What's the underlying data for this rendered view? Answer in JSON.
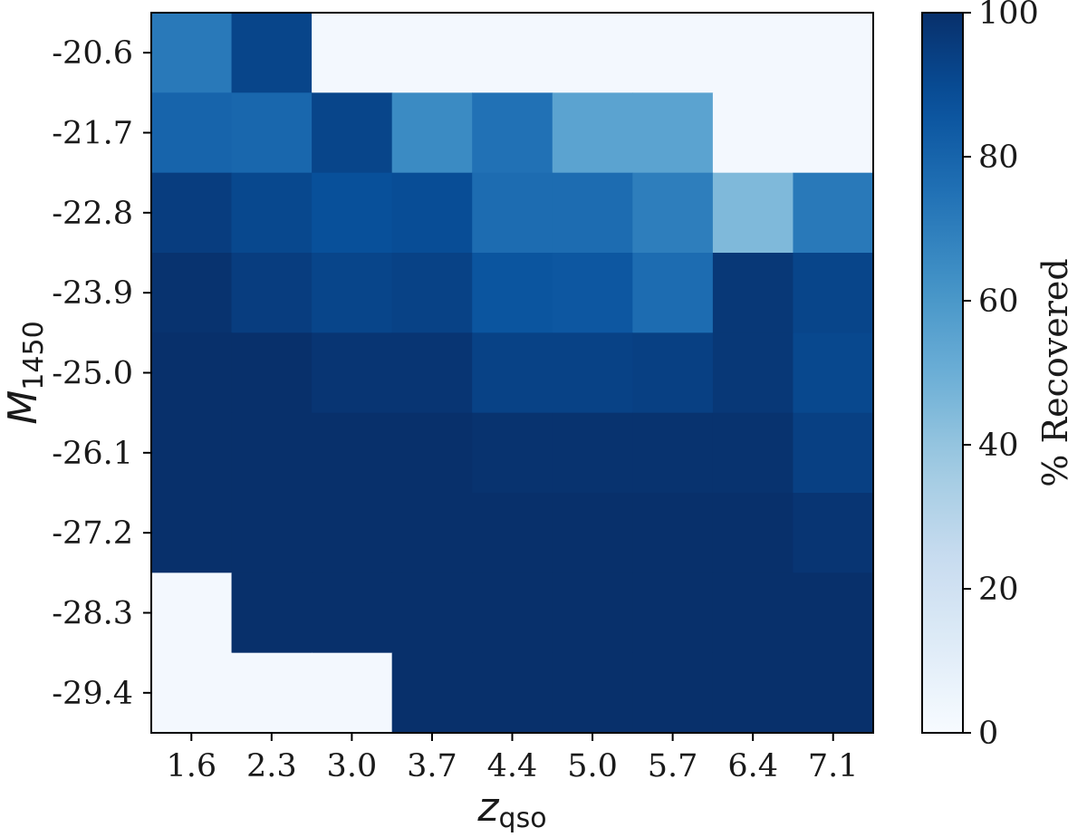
{
  "chart_data": {
    "type": "heatmap",
    "x": {
      "label_main": "z",
      "label_sub": "qso",
      "ticks": [
        "1.6",
        "2.3",
        "3.0",
        "3.7",
        "4.4",
        "5.0",
        "5.7",
        "6.4",
        "7.1"
      ]
    },
    "y": {
      "label_main": "M",
      "label_sub": "1450",
      "ticks": [
        "-20.6",
        "-21.7",
        "-22.8",
        "-23.9",
        "-25.0",
        "-26.1",
        "-27.2",
        "-28.3",
        "-29.4"
      ]
    },
    "values": [
      [
        72,
        92,
        2,
        2,
        2,
        2,
        2,
        2,
        2
      ],
      [
        80,
        79,
        92,
        65,
        75,
        55,
        55,
        2,
        2
      ],
      [
        95,
        91,
        88,
        89,
        77,
        77,
        70,
        45,
        72
      ],
      [
        99,
        95,
        92,
        93,
        86,
        85,
        77,
        97,
        92
      ],
      [
        100,
        100,
        98,
        98,
        93,
        93,
        94,
        97,
        91
      ],
      [
        100,
        100,
        100,
        100,
        99,
        99,
        99,
        99,
        94
      ],
      [
        100,
        100,
        100,
        100,
        100,
        100,
        100,
        100,
        98
      ],
      [
        2,
        100,
        100,
        100,
        100,
        100,
        100,
        100,
        100
      ],
      [
        2,
        2,
        2,
        100,
        100,
        100,
        100,
        100,
        100
      ]
    ],
    "colorbar": {
      "label": "% Recovered",
      "range": [
        0,
        100
      ],
      "ticks": [
        "0",
        "20",
        "40",
        "60",
        "80",
        "100"
      ],
      "colormap": "Blues"
    },
    "grid": false,
    "legend": "none"
  }
}
